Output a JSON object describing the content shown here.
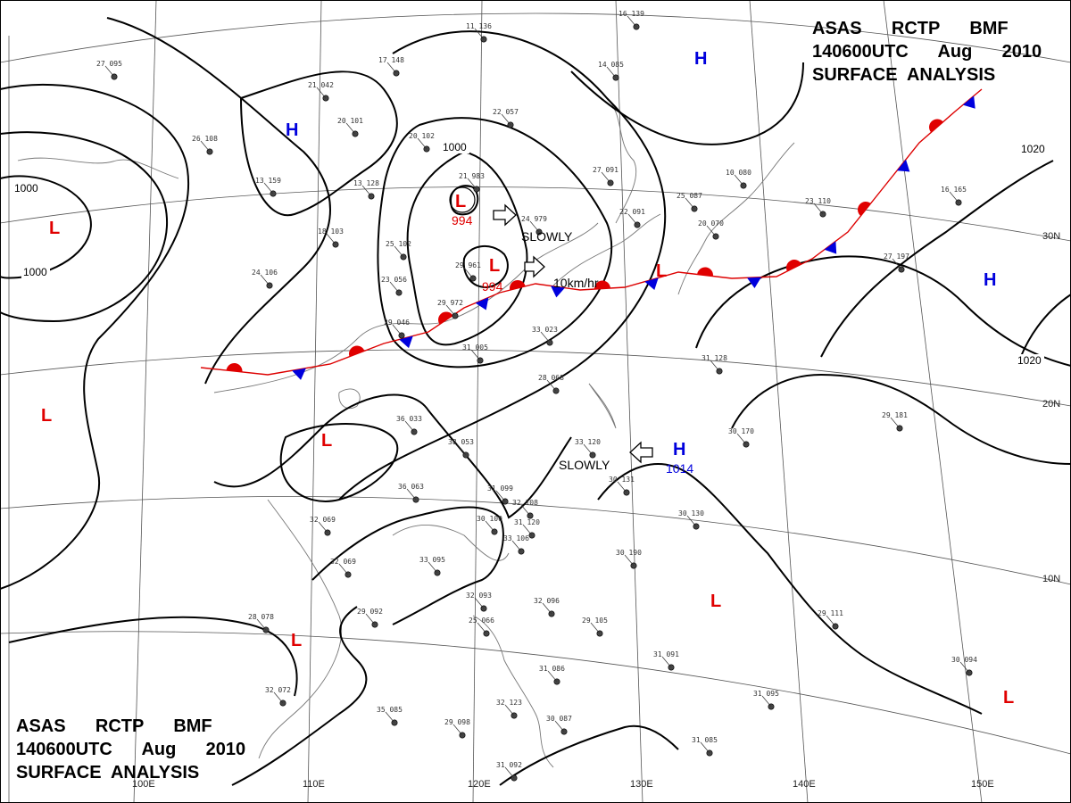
{
  "titles": {
    "top": [
      "ASAS      RCTP      BMF",
      "140600UTC      Aug      2010",
      "SURFACE  ANALYSIS"
    ],
    "bottom": [
      "ASAS      RCTP      BMF",
      "140600UTC      Aug      2010",
      "SURFACE  ANALYSIS"
    ]
  },
  "latitude_labels": [
    "30N",
    "20N",
    "10N"
  ],
  "longitude_labels": [
    "100E",
    "110E",
    "120E",
    "130E",
    "140E",
    "150E"
  ],
  "isobar_labels": [
    "1000",
    "1000",
    "1000",
    "1020",
    "1020"
  ],
  "lows": [
    {
      "symbol": "L",
      "pressure": "994"
    },
    {
      "symbol": "L",
      "pressure": "994"
    },
    {
      "symbol": "L",
      "pressure": ""
    },
    {
      "symbol": "L",
      "pressure": ""
    },
    {
      "symbol": "L",
      "pressure": ""
    },
    {
      "symbol": "L",
      "pressure": ""
    },
    {
      "symbol": "L",
      "pressure": ""
    },
    {
      "symbol": "L",
      "pressure": ""
    },
    {
      "symbol": "L",
      "pressure": ""
    }
  ],
  "highs": [
    {
      "symbol": "H",
      "pressure": ""
    },
    {
      "symbol": "H",
      "pressure": ""
    },
    {
      "symbol": "H",
      "pressure": "1014"
    },
    {
      "symbol": "H",
      "pressure": ""
    }
  ],
  "movements": [
    "SLOWLY",
    "10km/hr",
    "SLOWLY"
  ],
  "stations": [
    "27 095",
    "21 042",
    "20 101",
    "26 108",
    "17 148",
    "11 136",
    "22 057",
    "14 085",
    "16 139",
    "13 159",
    "13 128",
    "18 103",
    "20 102",
    "21 983",
    "25 102",
    "24 106",
    "23 056",
    "29 046",
    "29 972",
    "29 961",
    "24 979",
    "27 091",
    "22 091",
    "20 070",
    "10 080",
    "23 110",
    "16 165",
    "27 197",
    "25 087",
    "31 005",
    "33 023",
    "36 033",
    "38 053",
    "36 063",
    "31 099",
    "32 108",
    "31 120",
    "30 100",
    "33 106",
    "33 095",
    "32 069",
    "32 069",
    "33 120",
    "30 131",
    "30 130",
    "30 190",
    "30 170",
    "29 181",
    "32 093",
    "25 066",
    "29 105",
    "32 096",
    "28 078",
    "29 092",
    "31 091",
    "30 094",
    "29 111",
    "32 072",
    "35 085",
    "29 098",
    "32 123",
    "31 086",
    "30 087",
    "31 092",
    "31 085",
    "31 095",
    "31 128",
    "28 068"
  ]
}
